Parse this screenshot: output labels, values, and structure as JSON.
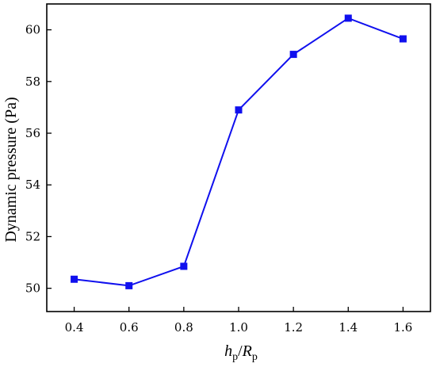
{
  "chart_data": {
    "type": "line",
    "title": "",
    "xlabel": {
      "main1": "h",
      "sub1": "p",
      "slash": "/",
      "main2": "R",
      "sub2": "p"
    },
    "ylabel": "Dynamic pressure (Pa)",
    "x": [
      0.4,
      0.6,
      0.8,
      1.0,
      1.2,
      1.4,
      1.6
    ],
    "x_tick_labels": [
      "0.4",
      "0.6",
      "0.8",
      "1.0",
      "1.2",
      "1.4",
      "1.6"
    ],
    "y_ticks": [
      50,
      52,
      54,
      56,
      58,
      60
    ],
    "y_tick_labels": [
      "50",
      "52",
      "54",
      "56",
      "58",
      "60"
    ],
    "xlim": [
      0.3,
      1.7
    ],
    "ylim": [
      49.1,
      61.0
    ],
    "grid": false,
    "series": [
      {
        "values": [
          50.35,
          50.1,
          50.85,
          56.9,
          59.05,
          60.45,
          59.65
        ],
        "color": "#1010ee",
        "marker": "square"
      }
    ]
  }
}
